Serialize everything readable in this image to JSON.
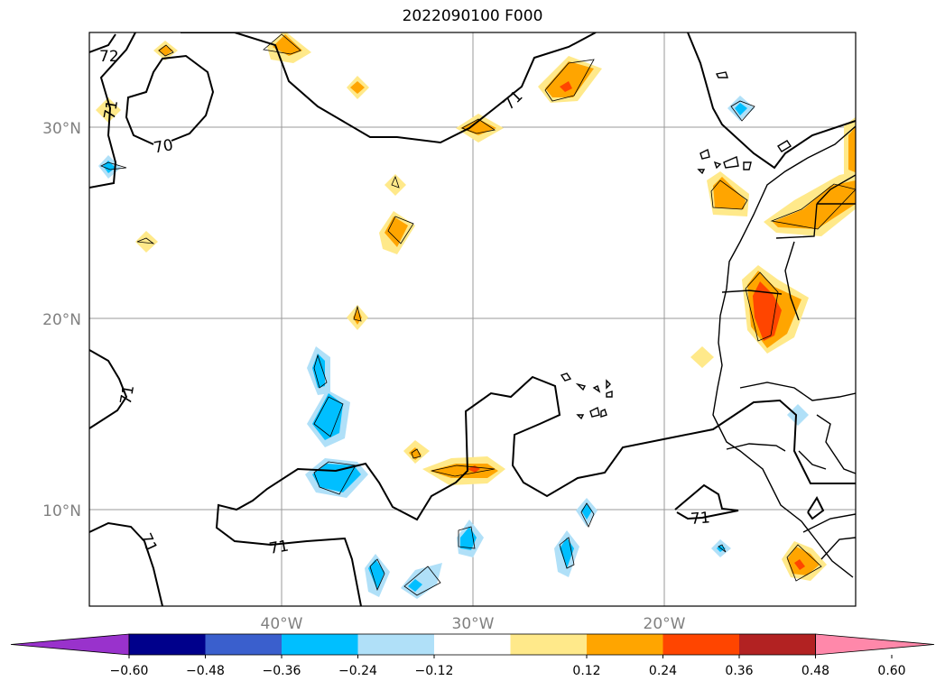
{
  "title": "2022090100 F000",
  "lat_labels": [
    "30°N",
    "20°N",
    "10°N"
  ],
  "lon_labels": [
    "40°W",
    "30°W",
    "20°W"
  ],
  "contour_labels": [
    "72",
    "71",
    "70",
    "71",
    "71",
    "71",
    "71",
    "71"
  ],
  "colorbar": {
    "ticks": [
      "−0.60",
      "−0.48",
      "−0.36",
      "−0.24",
      "−0.12",
      "0.12",
      "0.24",
      "0.36",
      "0.48",
      "0.60"
    ],
    "colors": [
      "#9932cc",
      "#00008b",
      "#3a5fcd",
      "#00bfff",
      "#b0e0f8",
      "#ffffff",
      "#ffe98a",
      "#ffa500",
      "#ff4500",
      "#b22222",
      "#ff88aa"
    ]
  },
  "legend_colors": {
    "neg_low": "#b0e0f8",
    "neg_mid": "#00bfff",
    "pos_low": "#ffe98a",
    "pos_mid": "#ffa500",
    "pos_high": "#ff4500"
  }
}
